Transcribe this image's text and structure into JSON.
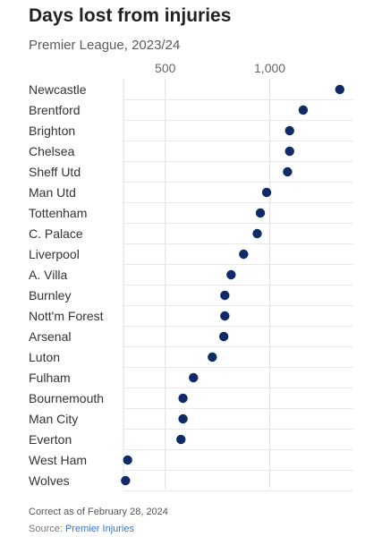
{
  "header": {
    "title": "Days lost from injuries",
    "subtitle": "Premier League, 2023/24"
  },
  "footer": {
    "note": "Correct as of February 28, 2024",
    "source_prefix": "Source: ",
    "source_name": "Premier Injuries"
  },
  "colors": {
    "dot": "#0f2a66",
    "grid": "#e2e2e2",
    "row_line": "#e9e9e9"
  },
  "chart_data": {
    "type": "scatter",
    "title": "Days lost from injuries",
    "subtitle": "Premier League, 2023/24",
    "xlabel": "",
    "ylabel": "",
    "xlim": [
      300,
      1400
    ],
    "xticks": [
      500,
      1000
    ],
    "xtick_labels": [
      "500",
      "1,000"
    ],
    "grid": true,
    "categories": [
      "Newcastle",
      "Brentford",
      "Brighton",
      "Chelsea",
      "Sheff Utd",
      "Man Utd",
      "Tottenham",
      "C. Palace",
      "Liverpool",
      "A. Villa",
      "Burnley",
      "Nott'm Forest",
      "Arsenal",
      "Luton",
      "Fulham",
      "Bournemouth",
      "Man City",
      "Everton",
      "West Ham",
      "Wolves"
    ],
    "values": [
      1335,
      1160,
      1095,
      1095,
      1085,
      985,
      955,
      940,
      875,
      815,
      785,
      785,
      780,
      725,
      635,
      585,
      585,
      575,
      320,
      310
    ]
  }
}
